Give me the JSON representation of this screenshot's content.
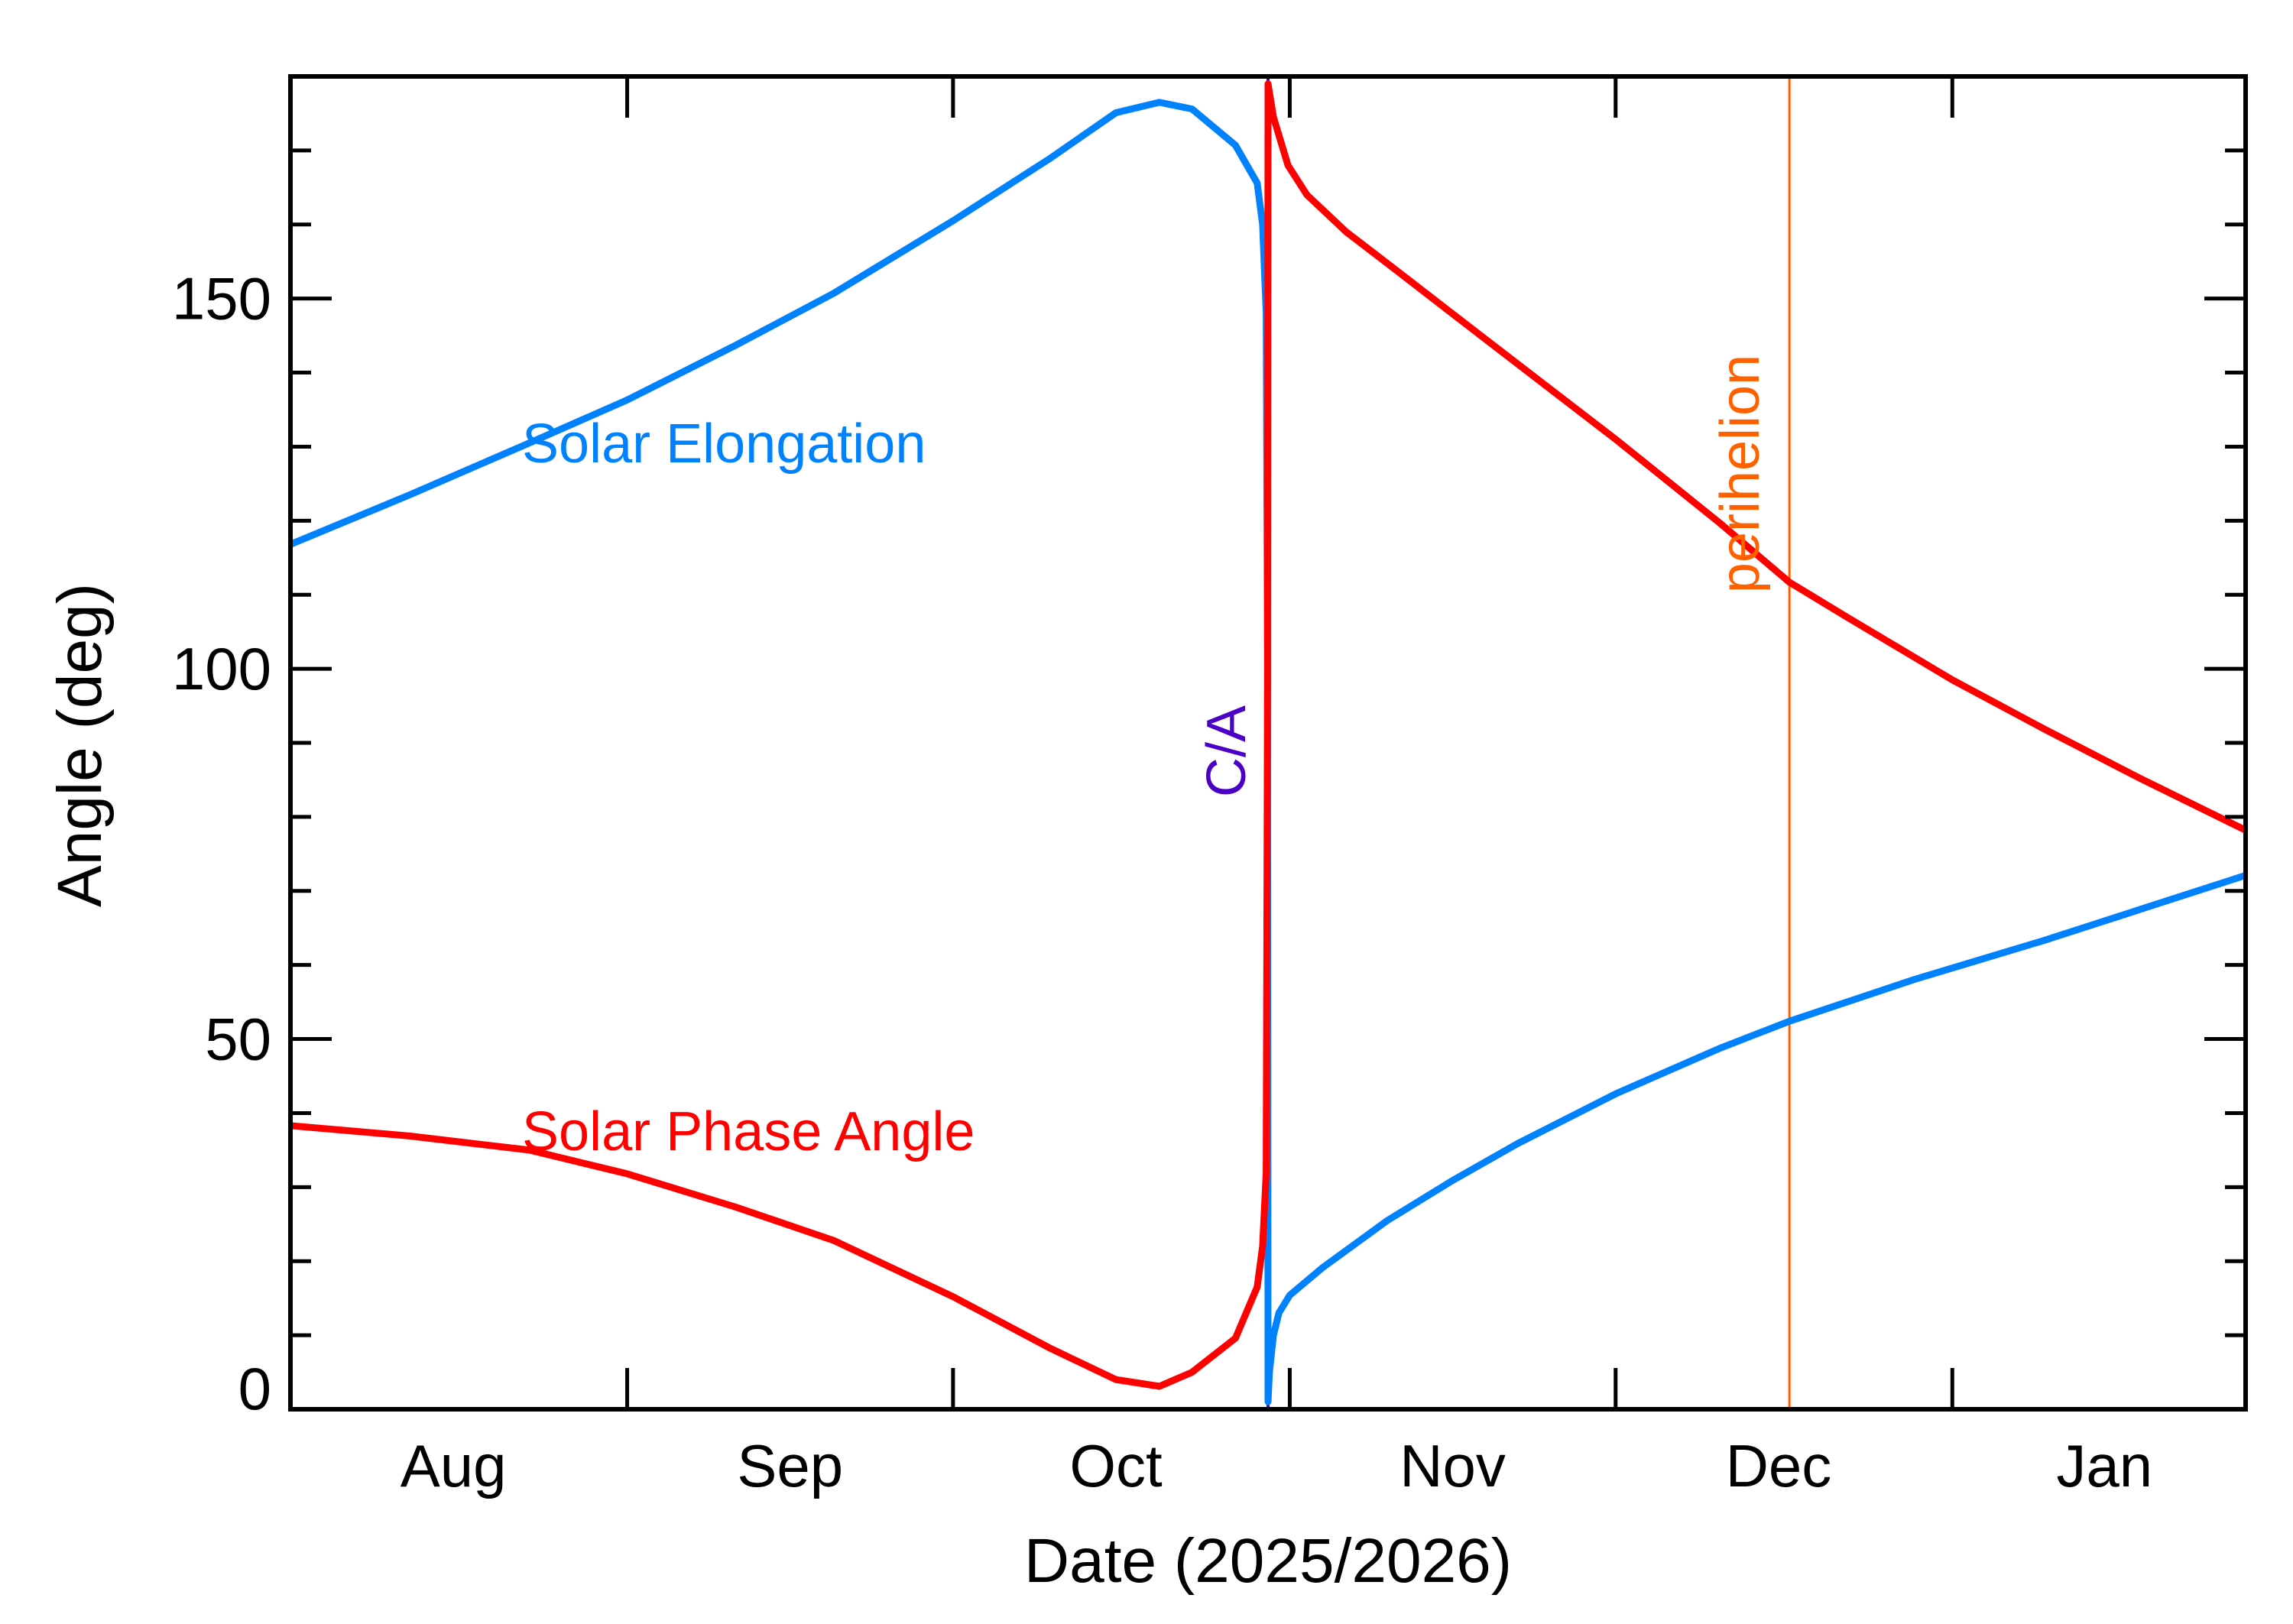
{
  "chart_data": {
    "type": "line",
    "xlabel": "Date (2025/2026)",
    "ylabel": "Angle (deg)",
    "xlim": [
      "2025-08-01",
      "2026-01-28"
    ],
    "ylim": [
      0,
      180
    ],
    "x_ticks": [
      {
        "date": "2025-09-01"
      },
      {
        "date": "2025-10-01"
      },
      {
        "date": "2025-11-01"
      },
      {
        "date": "2025-12-01"
      },
      {
        "date": "2026-01-01"
      }
    ],
    "x_tick_labels": [
      {
        "label": "Aug",
        "date": "2025-08-16"
      },
      {
        "label": "Sep",
        "date": "2025-09-16"
      },
      {
        "label": "Oct",
        "date": "2025-10-16"
      },
      {
        "label": "Nov",
        "date": "2025-11-16"
      },
      {
        "label": "Dec",
        "date": "2025-12-16"
      },
      {
        "label": "Jan",
        "date": "2026-01-15"
      }
    ],
    "y_major_ticks": [
      0,
      50,
      100,
      150
    ],
    "y_tick_labels": [
      "0",
      "50",
      "100",
      "150"
    ],
    "y_minor_step": 10,
    "grid": false,
    "series": [
      {
        "name": "Solar Elongation",
        "color": "#0082FF",
        "points": [
          [
            "2025-08-01",
            116.8
          ],
          [
            "2025-08-12",
            123.5
          ],
          [
            "2025-08-23",
            130.5
          ],
          [
            "2025-09-01",
            136.3
          ],
          [
            "2025-09-11",
            143.7
          ],
          [
            "2025-09-20",
            150.7
          ],
          [
            "2025-10-01",
            160.5
          ],
          [
            "2025-10-10",
            169.0
          ],
          [
            "2025-10-16",
            175.1
          ],
          [
            "2025-10-20",
            176.5
          ],
          [
            "2025-10-23",
            175.6
          ],
          [
            "2025-10-27",
            170.7
          ],
          [
            "2025-10-29T00:00",
            165.6
          ],
          [
            "2025-10-29T12:00",
            160.0
          ],
          [
            "2025-10-29T20:00",
            148.0
          ],
          [
            "2025-10-29T23:00",
            100.0
          ],
          [
            "2025-10-30T00:00",
            1.0
          ],
          [
            "2025-10-30T03:00",
            5.0
          ],
          [
            "2025-10-30T12:00",
            10.0
          ],
          [
            "2025-10-31T00:00",
            13.0
          ],
          [
            "2025-11-01",
            15.4
          ],
          [
            "2025-11-04",
            19.1
          ],
          [
            "2025-11-10",
            25.5
          ],
          [
            "2025-11-16",
            30.9
          ],
          [
            "2025-11-22",
            35.9
          ],
          [
            "2025-12-01",
            42.6
          ],
          [
            "2025-12-10T12:00",
            48.7
          ],
          [
            "2025-12-17",
            52.4
          ],
          [
            "2025-12-28T10:00",
            58.0
          ],
          [
            "2026-01-09T10:00",
            63.3
          ],
          [
            "2026-01-28",
            72.1
          ]
        ]
      },
      {
        "name": "Solar Phase Angle",
        "color": "#FF0000",
        "points": [
          [
            "2025-08-01",
            38.3
          ],
          [
            "2025-08-12",
            36.9
          ],
          [
            "2025-08-23",
            35.0
          ],
          [
            "2025-09-01",
            31.8
          ],
          [
            "2025-09-11",
            27.3
          ],
          [
            "2025-09-20",
            22.8
          ],
          [
            "2025-10-01",
            15.2
          ],
          [
            "2025-10-10",
            8.2
          ],
          [
            "2025-10-16",
            4.0
          ],
          [
            "2025-10-20",
            3.1
          ],
          [
            "2025-10-23",
            5.0
          ],
          [
            "2025-10-27",
            9.6
          ],
          [
            "2025-10-29T00:00",
            16.5
          ],
          [
            "2025-10-29T12:00",
            22.0
          ],
          [
            "2025-10-29T20:00",
            32.0
          ],
          [
            "2025-10-29T23:00",
            100.0
          ],
          [
            "2025-10-30T00:00",
            179.0
          ],
          [
            "2025-10-30T12:00",
            174.5
          ],
          [
            "2025-10-31T20:00",
            168.0
          ],
          [
            "2025-11-02T14:00",
            164.0
          ],
          [
            "2025-11-06T05:00",
            159.0
          ],
          [
            "2025-11-10T22:00",
            153.7
          ],
          [
            "2025-11-18T14:00",
            145.0
          ],
          [
            "2025-12-01",
            131.0
          ],
          [
            "2025-12-10T14:00",
            119.7
          ],
          [
            "2025-12-17",
            111.7
          ],
          [
            "2025-12-22T12:00",
            106.8
          ],
          [
            "2026-01-01",
            98.5
          ],
          [
            "2026-01-09T10:00",
            91.9
          ],
          [
            "2026-01-18T07:00",
            85.2
          ],
          [
            "2026-01-28",
            78.2
          ]
        ]
      }
    ],
    "series_labels": [
      {
        "text": "Solar Elongation",
        "color": "#0082FF"
      },
      {
        "text": "Solar Phase Angle",
        "color": "#FF0000"
      }
    ],
    "events": [
      {
        "label": "C/A",
        "date": "2025-10-30T00:00",
        "color": "#4B00C8"
      },
      {
        "label": "perihelion",
        "date": "2025-12-17",
        "color": "#FF6000"
      }
    ]
  }
}
